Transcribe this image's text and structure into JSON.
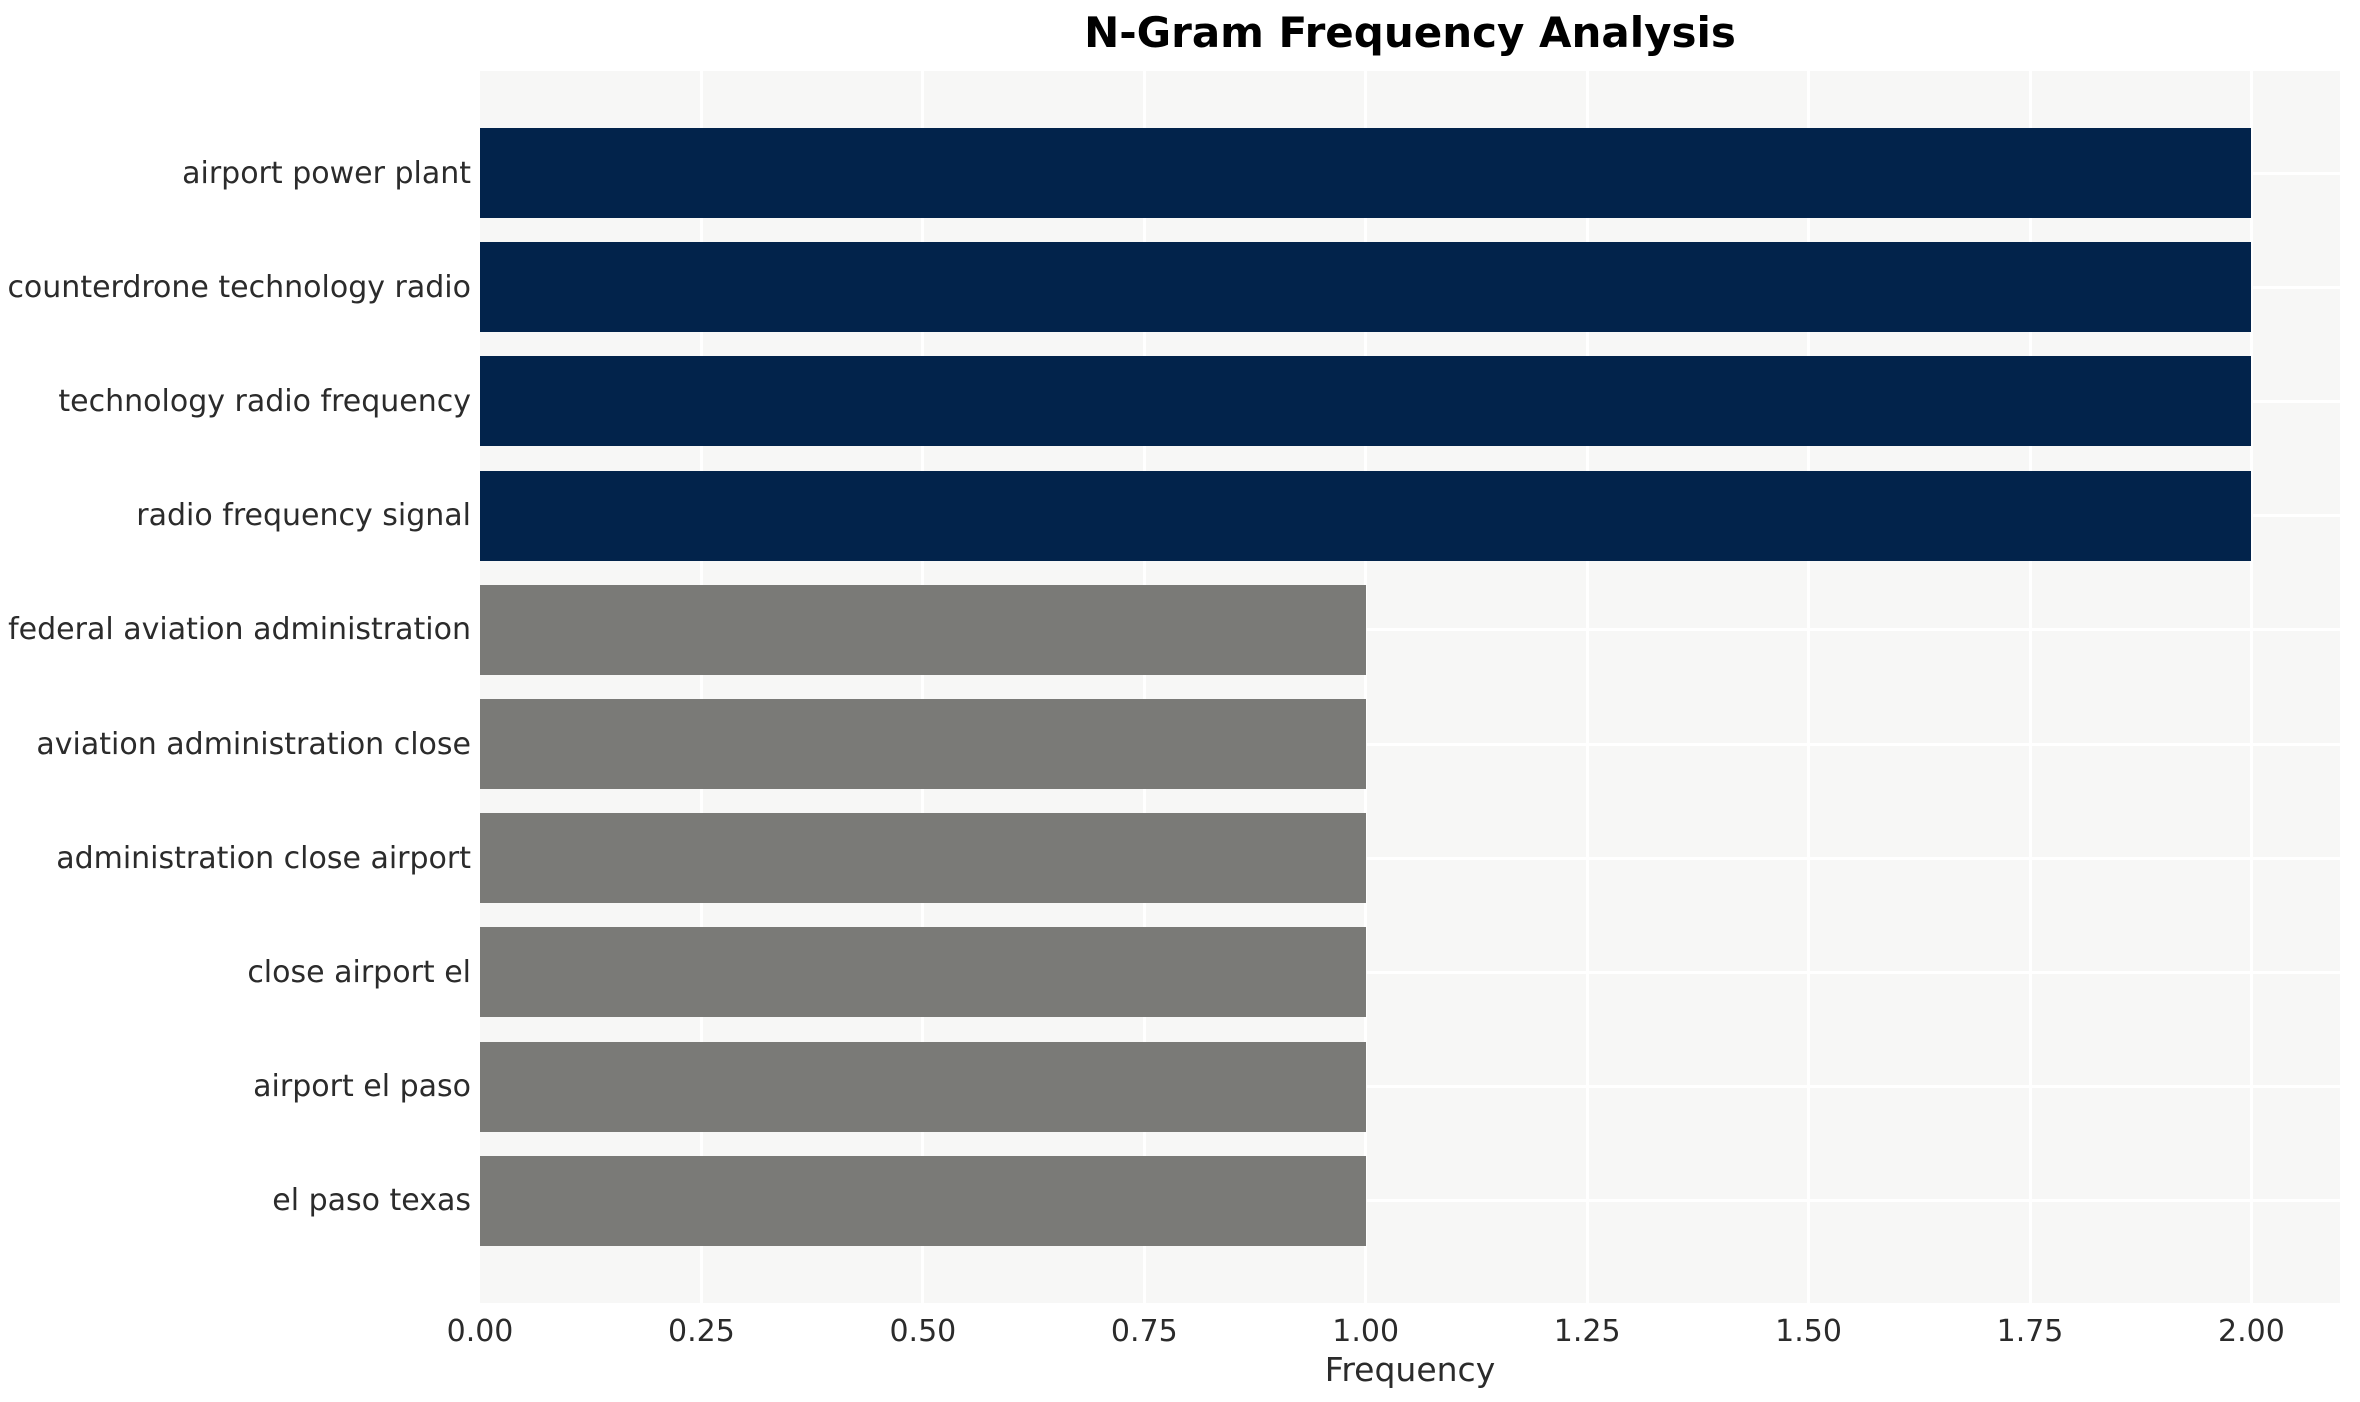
{
  "chart_data": {
    "type": "bar",
    "orientation": "horizontal",
    "title": "N-Gram Frequency Analysis",
    "xlabel": "Frequency",
    "ylabel": "",
    "categories": [
      "airport power plant",
      "counterdrone technology radio",
      "technology radio frequency",
      "radio frequency signal",
      "federal aviation administration",
      "aviation administration close",
      "administration close airport",
      "close airport el",
      "airport el paso",
      "el paso texas"
    ],
    "values": [
      2,
      2,
      2,
      2,
      1,
      1,
      1,
      1,
      1,
      1
    ],
    "bar_colors": [
      "#02234b",
      "#02234b",
      "#02234b",
      "#02234b",
      "#7a7a77",
      "#7a7a77",
      "#7a7a77",
      "#7a7a77",
      "#7a7a77",
      "#7a7a77"
    ],
    "xlim": [
      0,
      2.1
    ],
    "xticks": [
      0,
      0.25,
      0.5,
      0.75,
      1,
      1.25,
      1.5,
      1.75,
      2
    ],
    "xtick_labels": [
      "0.00",
      "0.25",
      "0.50",
      "0.75",
      "1.00",
      "1.25",
      "1.50",
      "1.75",
      "2.00"
    ],
    "grid": true,
    "legend": false,
    "colors": {
      "high_bar": "#02234b",
      "low_bar": "#7a7a77",
      "panel_bg": "#f7f7f6",
      "gridline": "#ffffff",
      "tick_text": "#2b2b2b",
      "title_text": "#000000"
    }
  }
}
